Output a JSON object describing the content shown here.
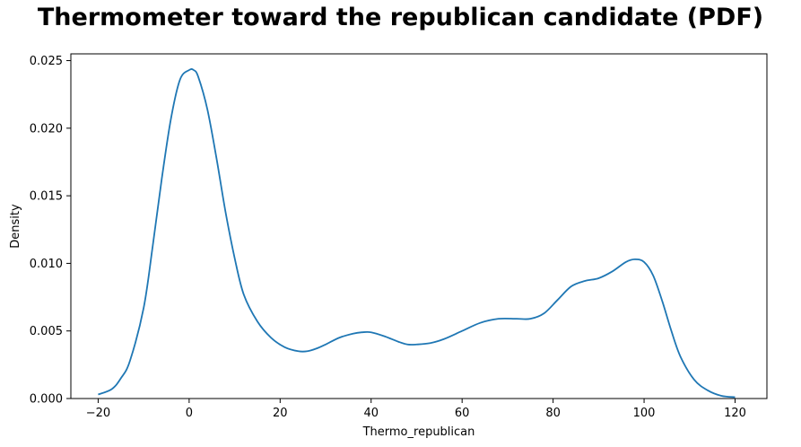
{
  "chart_data": {
    "type": "line",
    "title": "Thermometer toward the republican candidate (PDF)",
    "xlabel": "Thermo_republican",
    "ylabel": "Density",
    "xlim": [
      -26,
      127
    ],
    "ylim": [
      0,
      0.0255
    ],
    "xticks": [
      -20,
      0,
      20,
      40,
      60,
      80,
      100,
      120
    ],
    "xtick_labels": [
      "−20",
      "0",
      "20",
      "40",
      "60",
      "80",
      "100",
      "120"
    ],
    "yticks": [
      0,
      0.005,
      0.01,
      0.015,
      0.02,
      0.025
    ],
    "ytick_labels": [
      "0.000",
      "0.005",
      "0.010",
      "0.015",
      "0.020",
      "0.025"
    ],
    "grid": false,
    "colors": {
      "line": "#1f77b4"
    },
    "series": [
      {
        "x": [
          -20,
          -17,
          -15,
          -13,
          -10,
          -8,
          -6,
          -4,
          -2,
          0,
          1,
          2,
          4,
          6,
          8,
          10,
          12,
          15,
          18,
          21,
          24,
          26,
          28,
          30,
          33,
          36,
          38,
          40,
          43,
          46,
          48,
          50,
          53,
          56,
          60,
          64,
          68,
          72,
          75,
          78,
          81,
          84,
          87,
          90,
          93,
          96,
          98,
          100,
          102,
          104,
          106,
          108,
          111,
          114,
          117,
          120
        ],
        "y": [
          0.0003,
          0.0007,
          0.0015,
          0.0028,
          0.0067,
          0.0113,
          0.0163,
          0.0207,
          0.0236,
          0.0243,
          0.0243,
          0.0238,
          0.0214,
          0.0178,
          0.0138,
          0.0104,
          0.0077,
          0.0057,
          0.0045,
          0.0038,
          0.0035,
          0.0035,
          0.0037,
          0.004,
          0.0045,
          0.0048,
          0.0049,
          0.0049,
          0.0046,
          0.0042,
          0.004,
          0.004,
          0.0041,
          0.0044,
          0.005,
          0.0056,
          0.0059,
          0.0059,
          0.0059,
          0.0063,
          0.0073,
          0.0083,
          0.0087,
          0.0089,
          0.0094,
          0.0101,
          0.0103,
          0.0101,
          0.0091,
          0.0072,
          0.005,
          0.0031,
          0.0014,
          0.0006,
          0.0002,
          0.0001
        ]
      }
    ]
  }
}
